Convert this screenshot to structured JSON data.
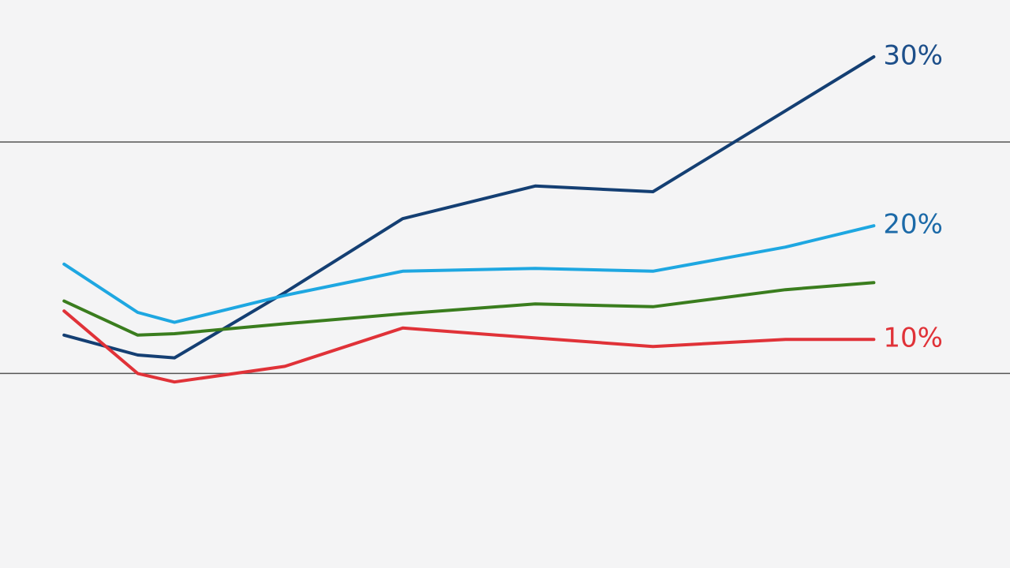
{
  "chart_data": {
    "type": "line",
    "x": [
      0,
      1,
      1.5,
      3,
      4.6,
      6.4,
      8,
      9.8,
      11
    ],
    "xlim": [
      -0.87,
      12.85
    ],
    "ylim": [
      -6,
      34
    ],
    "hlines": [
      24,
      7.7
    ],
    "series": [
      {
        "color": "#143f73",
        "label_color": "#1d4f8a",
        "label": "30%",
        "values": [
          10.4,
          9.0,
          8.8,
          13.4,
          18.6,
          20.9,
          20.5,
          26.2,
          30
        ]
      },
      {
        "color": "#1ea7e1",
        "label_color": "#1c6aa8",
        "label": "20%",
        "values": [
          15.4,
          12.0,
          11.3,
          13.2,
          14.9,
          15.1,
          14.9,
          16.6,
          18.1
        ]
      },
      {
        "color": "#3a7d1e",
        "values": [
          12.8,
          10.4,
          10.5,
          11.2,
          11.9,
          12.6,
          12.4,
          13.6,
          14.1
        ]
      },
      {
        "color": "#e03238",
        "label_color": "#e03238",
        "label": "10%",
        "values": [
          12.1,
          7.7,
          7.1,
          8.2,
          10.9,
          10.2,
          9.6,
          10.1,
          10.1
        ]
      }
    ]
  }
}
